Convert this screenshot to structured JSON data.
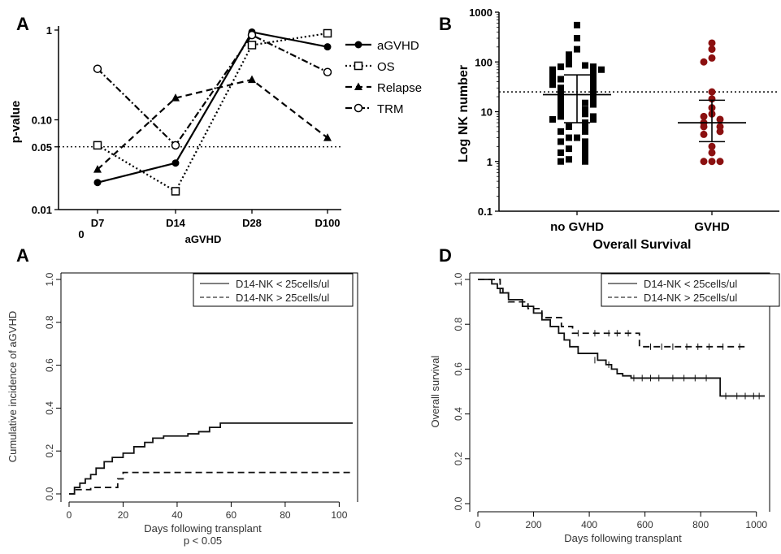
{
  "chart_data": [
    {
      "panel": "A",
      "type": "line",
      "panel_label": "A",
      "xlabel": "aGVHD",
      "ylabel": "p-value",
      "origin_label": "0",
      "categories": [
        "D7",
        "D14",
        "D28",
        "D100"
      ],
      "y_scale": "log",
      "ylim": [
        0.01,
        1
      ],
      "yticks": [
        "0.01",
        "0.05",
        "0.10",
        "1"
      ],
      "ytick_values": [
        0.01,
        0.05,
        0.1,
        1
      ],
      "reference_line": 0.05,
      "legend_position": "right",
      "series": [
        {
          "name": "aGVHD",
          "marker": "filled-circle",
          "dash": "solid",
          "values": [
            0.02,
            0.033,
            0.95,
            0.65
          ]
        },
        {
          "name": "OS",
          "marker": "open-square",
          "dash": "dotted",
          "values": [
            0.052,
            0.016,
            0.68,
            0.92
          ]
        },
        {
          "name": "Relapse",
          "marker": "filled-triangle",
          "dash": "dashed",
          "values": [
            0.028,
            0.175,
            0.28,
            0.063
          ]
        },
        {
          "name": "TRM",
          "marker": "open-circle",
          "dash": "dash-dot",
          "values": [
            0.37,
            0.052,
            0.88,
            0.34
          ]
        }
      ]
    },
    {
      "panel": "B",
      "type": "scatter",
      "panel_label": "B",
      "xlabel": "Overall Survival",
      "ylabel": "Log NK number",
      "categories": [
        "no GVHD",
        "GVHD"
      ],
      "y_scale": "log",
      "ylim": [
        0.1,
        1000
      ],
      "yticks": [
        "0.1",
        "1",
        "10",
        "100",
        "1000"
      ],
      "ytick_values": [
        0.1,
        1,
        10,
        100,
        1000
      ],
      "reference_line": 25,
      "colors": {
        "no GVHD": "#000000",
        "GVHD": "#8b1010"
      },
      "groups": [
        {
          "category": "no GVHD",
          "marker": "square",
          "median": 22,
          "iqr": [
            6,
            55
          ],
          "values": [
            550,
            300,
            180,
            140,
            120,
            100,
            90,
            85,
            80,
            80,
            75,
            70,
            70,
            65,
            60,
            60,
            55,
            50,
            50,
            45,
            45,
            40,
            40,
            35,
            35,
            32,
            30,
            28,
            25,
            25,
            22,
            20,
            20,
            18,
            17,
            15,
            15,
            14,
            12,
            11,
            10,
            9,
            9,
            8,
            8,
            7,
            7,
            6,
            5,
            5,
            4,
            4,
            3,
            3,
            2.5,
            2.5,
            2,
            1.8,
            1.6,
            1.5,
            1.5,
            1.2,
            1.1,
            1,
            1
          ]
        },
        {
          "category": "GVHD",
          "marker": "circle",
          "median": 6,
          "iqr": [
            2.5,
            17
          ],
          "values": [
            240,
            180,
            120,
            100,
            25,
            18,
            12,
            9,
            8,
            7,
            6,
            5,
            5,
            4,
            3.5,
            2,
            1.5,
            1,
            1,
            1
          ]
        }
      ]
    },
    {
      "panel": "C",
      "type": "line",
      "panel_label": "A",
      "xlabel": "Days following transplant",
      "ylabel": "Cumulative incidence of aGVHD",
      "footnote": "p < 0.05",
      "xlim": [
        0,
        105
      ],
      "ylim": [
        0,
        1
      ],
      "xticks": [
        "0",
        "20",
        "40",
        "60",
        "80",
        "100"
      ],
      "xtick_values": [
        0,
        20,
        40,
        60,
        80,
        100
      ],
      "yticks": [
        "0.0",
        "0.2",
        "0.4",
        "0.6",
        "0.8",
        "1.0"
      ],
      "ytick_values": [
        0,
        0.2,
        0.4,
        0.6,
        0.8,
        1
      ],
      "legend_position": "top-right",
      "series": [
        {
          "name": "D14-NK < 25cells/ul",
          "dash": "solid",
          "step": true,
          "x": [
            0,
            2,
            4,
            6,
            8,
            10,
            13,
            16,
            20,
            24,
            28,
            31,
            35,
            44,
            48,
            52,
            56,
            105
          ],
          "y": [
            0,
            0.03,
            0.05,
            0.07,
            0.09,
            0.12,
            0.15,
            0.17,
            0.19,
            0.22,
            0.24,
            0.26,
            0.27,
            0.28,
            0.29,
            0.31,
            0.33,
            0.33
          ]
        },
        {
          "name": "D14-NK > 25cells/ul",
          "dash": "dashed",
          "step": true,
          "x": [
            0,
            2,
            8,
            18,
            20,
            105
          ],
          "y": [
            0,
            0.02,
            0.03,
            0.07,
            0.1,
            0.1
          ]
        }
      ]
    },
    {
      "panel": "D",
      "type": "line",
      "panel_label": "D",
      "xlabel": "Days following transplant",
      "ylabel": "Overall survival",
      "xlim": [
        0,
        1030
      ],
      "ylim": [
        0,
        1
      ],
      "xticks": [
        "0",
        "200",
        "400",
        "600",
        "800",
        "1000"
      ],
      "xtick_values": [
        0,
        200,
        400,
        600,
        800,
        1000
      ],
      "yticks": [
        "0.0",
        "0.2",
        "0.4",
        "0.6",
        "0.8",
        "1.0"
      ],
      "ytick_values": [
        0,
        0.2,
        0.4,
        0.6,
        0.8,
        1
      ],
      "legend_position": "top-right",
      "series": [
        {
          "name": "D14-NK < 25cells/ul",
          "dash": "solid",
          "step": true,
          "x": [
            0,
            50,
            70,
            90,
            110,
            160,
            200,
            230,
            260,
            290,
            310,
            330,
            360,
            390,
            430,
            460,
            480,
            500,
            520,
            550,
            870,
            1030
          ],
          "y": [
            1.0,
            0.98,
            0.96,
            0.94,
            0.91,
            0.88,
            0.85,
            0.82,
            0.79,
            0.76,
            0.73,
            0.7,
            0.67,
            0.67,
            0.64,
            0.62,
            0.6,
            0.58,
            0.57,
            0.56,
            0.48,
            0.48
          ],
          "censor_x": [
            420,
            470,
            560,
            590,
            620,
            650,
            700,
            740,
            780,
            820,
            890,
            930,
            960,
            990,
            1010
          ],
          "censor_y": [
            0.64,
            0.62,
            0.56,
            0.56,
            0.56,
            0.56,
            0.56,
            0.56,
            0.56,
            0.56,
            0.48,
            0.48,
            0.48,
            0.48,
            0.48
          ]
        },
        {
          "name": "D14-NK > 25cells/ul",
          "dash": "dashed",
          "step": true,
          "x": [
            0,
            80,
            110,
            180,
            230,
            300,
            340,
            580,
            960
          ],
          "y": [
            1.0,
            0.94,
            0.9,
            0.87,
            0.83,
            0.79,
            0.76,
            0.7,
            0.7
          ],
          "censor_x": [
            360,
            420,
            470,
            500,
            540,
            620,
            660,
            700,
            750,
            790,
            830,
            880,
            940
          ],
          "censor_y": [
            0.76,
            0.76,
            0.76,
            0.76,
            0.76,
            0.7,
            0.7,
            0.7,
            0.7,
            0.7,
            0.7,
            0.7,
            0.7
          ]
        }
      ]
    }
  ]
}
